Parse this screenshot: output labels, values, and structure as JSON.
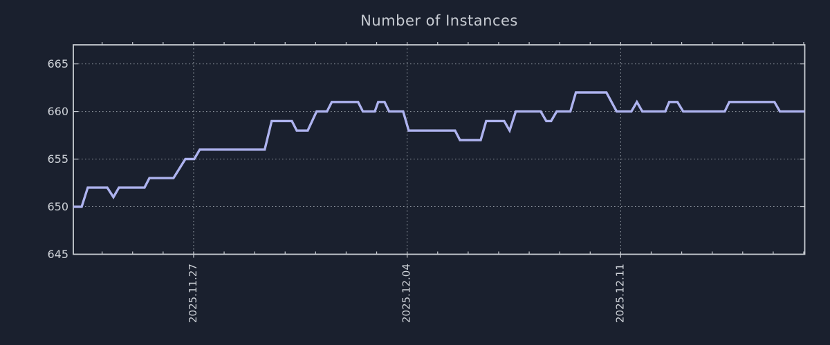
{
  "page": {
    "background_color": "#1a202e"
  },
  "chart_data": {
    "type": "line",
    "title": "Number of Instances",
    "legend": "none",
    "grid": "dotted",
    "colors": {
      "line": "#aeb3ef",
      "border": "#c9cdd3",
      "grid": "#99a0a9",
      "tick_label": "#ced2d8",
      "title": "#c8ccd3"
    },
    "x_axis": {
      "unit": "days relative to 2025.11.27",
      "range_days": [
        -3.944,
        20.034
      ],
      "minor_tick_every_days": 1,
      "major_ticks": [
        {
          "day": 0,
          "label": "2025.11.27"
        },
        {
          "day": 7,
          "label": "2025.12.04"
        },
        {
          "day": 14,
          "label": "2025.12.11"
        }
      ]
    },
    "y_axis": {
      "range": [
        645,
        667
      ],
      "ticks": [
        645,
        650,
        655,
        660,
        665
      ],
      "gridline_ticks": [
        650,
        655,
        660,
        665
      ]
    },
    "series": [
      {
        "name": "instances",
        "points": [
          [
            -3.94,
            650
          ],
          [
            -3.67,
            650
          ],
          [
            -3.47,
            652
          ],
          [
            -2.83,
            652
          ],
          [
            -2.63,
            651
          ],
          [
            -2.45,
            652
          ],
          [
            -1.61,
            652
          ],
          [
            -1.45,
            653
          ],
          [
            -0.66,
            653
          ],
          [
            -0.27,
            655
          ],
          [
            0.02,
            655
          ],
          [
            0.2,
            656
          ],
          [
            2.33,
            656
          ],
          [
            2.56,
            659
          ],
          [
            3.22,
            659
          ],
          [
            3.38,
            658
          ],
          [
            3.74,
            658
          ],
          [
            4.03,
            660
          ],
          [
            4.37,
            660
          ],
          [
            4.53,
            661
          ],
          [
            5.39,
            661
          ],
          [
            5.55,
            660
          ],
          [
            5.94,
            660
          ],
          [
            6.05,
            661
          ],
          [
            6.26,
            661
          ],
          [
            6.41,
            660
          ],
          [
            6.87,
            660
          ],
          [
            7.05,
            658
          ],
          [
            8.57,
            658
          ],
          [
            8.73,
            657
          ],
          [
            9.41,
            657
          ],
          [
            9.59,
            659
          ],
          [
            10.18,
            659
          ],
          [
            10.36,
            658
          ],
          [
            10.56,
            660
          ],
          [
            11.38,
            660
          ],
          [
            11.56,
            659
          ],
          [
            11.72,
            659
          ],
          [
            11.9,
            660
          ],
          [
            12.35,
            660
          ],
          [
            12.53,
            662
          ],
          [
            13.53,
            662
          ],
          [
            13.87,
            660
          ],
          [
            14.35,
            660
          ],
          [
            14.53,
            661
          ],
          [
            14.71,
            660
          ],
          [
            15.46,
            660
          ],
          [
            15.59,
            661
          ],
          [
            15.86,
            661
          ],
          [
            16.05,
            660
          ],
          [
            17.41,
            660
          ],
          [
            17.56,
            661
          ],
          [
            19.04,
            661
          ],
          [
            19.22,
            660
          ],
          [
            20.03,
            660
          ]
        ]
      }
    ]
  }
}
